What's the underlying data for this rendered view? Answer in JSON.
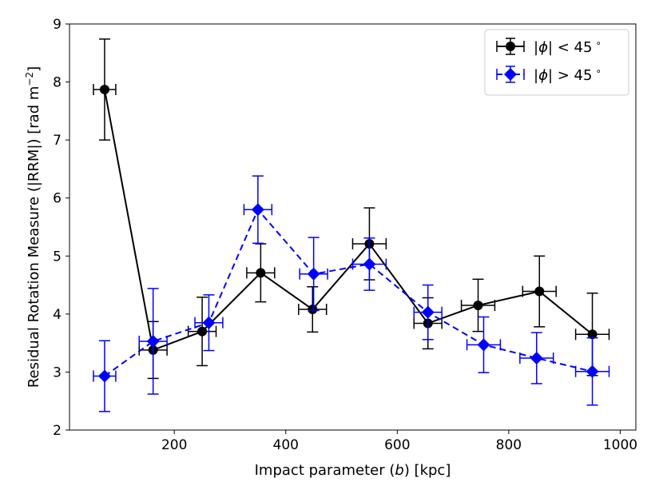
{
  "chart_data": {
    "type": "line",
    "title": "",
    "xlabel": "Impact parameter (b) [kpc]",
    "xlabel_parts": {
      "prefix": "Impact parameter (",
      "var": "b",
      "suffix": ") [kpc]"
    },
    "ylabel": "Residual Rotation Measure (|RRM|) [rad m⁻²]",
    "ylabel_parts": {
      "main": "Residual Rotation Measure (|RRM|) [rad m",
      "sup": "−2",
      "end": "]"
    },
    "xlim": [
      12,
      1028
    ],
    "ylim": [
      2,
      9
    ],
    "xticks": [
      200,
      400,
      600,
      800,
      1000
    ],
    "yticks": [
      2,
      3,
      4,
      5,
      6,
      7,
      8,
      9
    ],
    "legend_position": "top-right",
    "series": [
      {
        "name": "|ϕ| < 45°",
        "legend": {
          "phi": "ϕ",
          "rest": "| < 45",
          "deg": "∘"
        },
        "color": "#000000",
        "marker": "circle",
        "linestyle": "solid",
        "x": [
          75,
          162,
          250,
          355,
          448,
          550,
          655,
          745,
          855,
          950
        ],
        "y": [
          7.87,
          3.38,
          3.7,
          4.71,
          4.08,
          5.21,
          3.84,
          4.15,
          4.39,
          3.65
        ],
        "xerr": [
          20,
          25,
          25,
          25,
          25,
          30,
          25,
          30,
          30,
          30
        ],
        "yerr": [
          0.87,
          0.49,
          0.59,
          0.5,
          0.39,
          0.62,
          0.44,
          0.45,
          0.61,
          0.71
        ]
      },
      {
        "name": "|ϕ| > 45°",
        "legend": {
          "phi": "ϕ",
          "rest": "| > 45",
          "deg": "∘"
        },
        "color": "#0000ff",
        "marker": "diamond",
        "linestyle": "dashed",
        "x": [
          75,
          162,
          262,
          350,
          450,
          550,
          655,
          755,
          850,
          950
        ],
        "y": [
          2.93,
          3.53,
          3.85,
          5.8,
          4.69,
          4.86,
          4.03,
          3.47,
          3.24,
          3.01
        ],
        "xerr": [
          20,
          25,
          25,
          25,
          25,
          30,
          25,
          30,
          30,
          30
        ],
        "yerr": [
          0.61,
          0.91,
          0.48,
          0.58,
          0.63,
          0.45,
          0.47,
          0.48,
          0.44,
          0.58
        ]
      }
    ]
  }
}
